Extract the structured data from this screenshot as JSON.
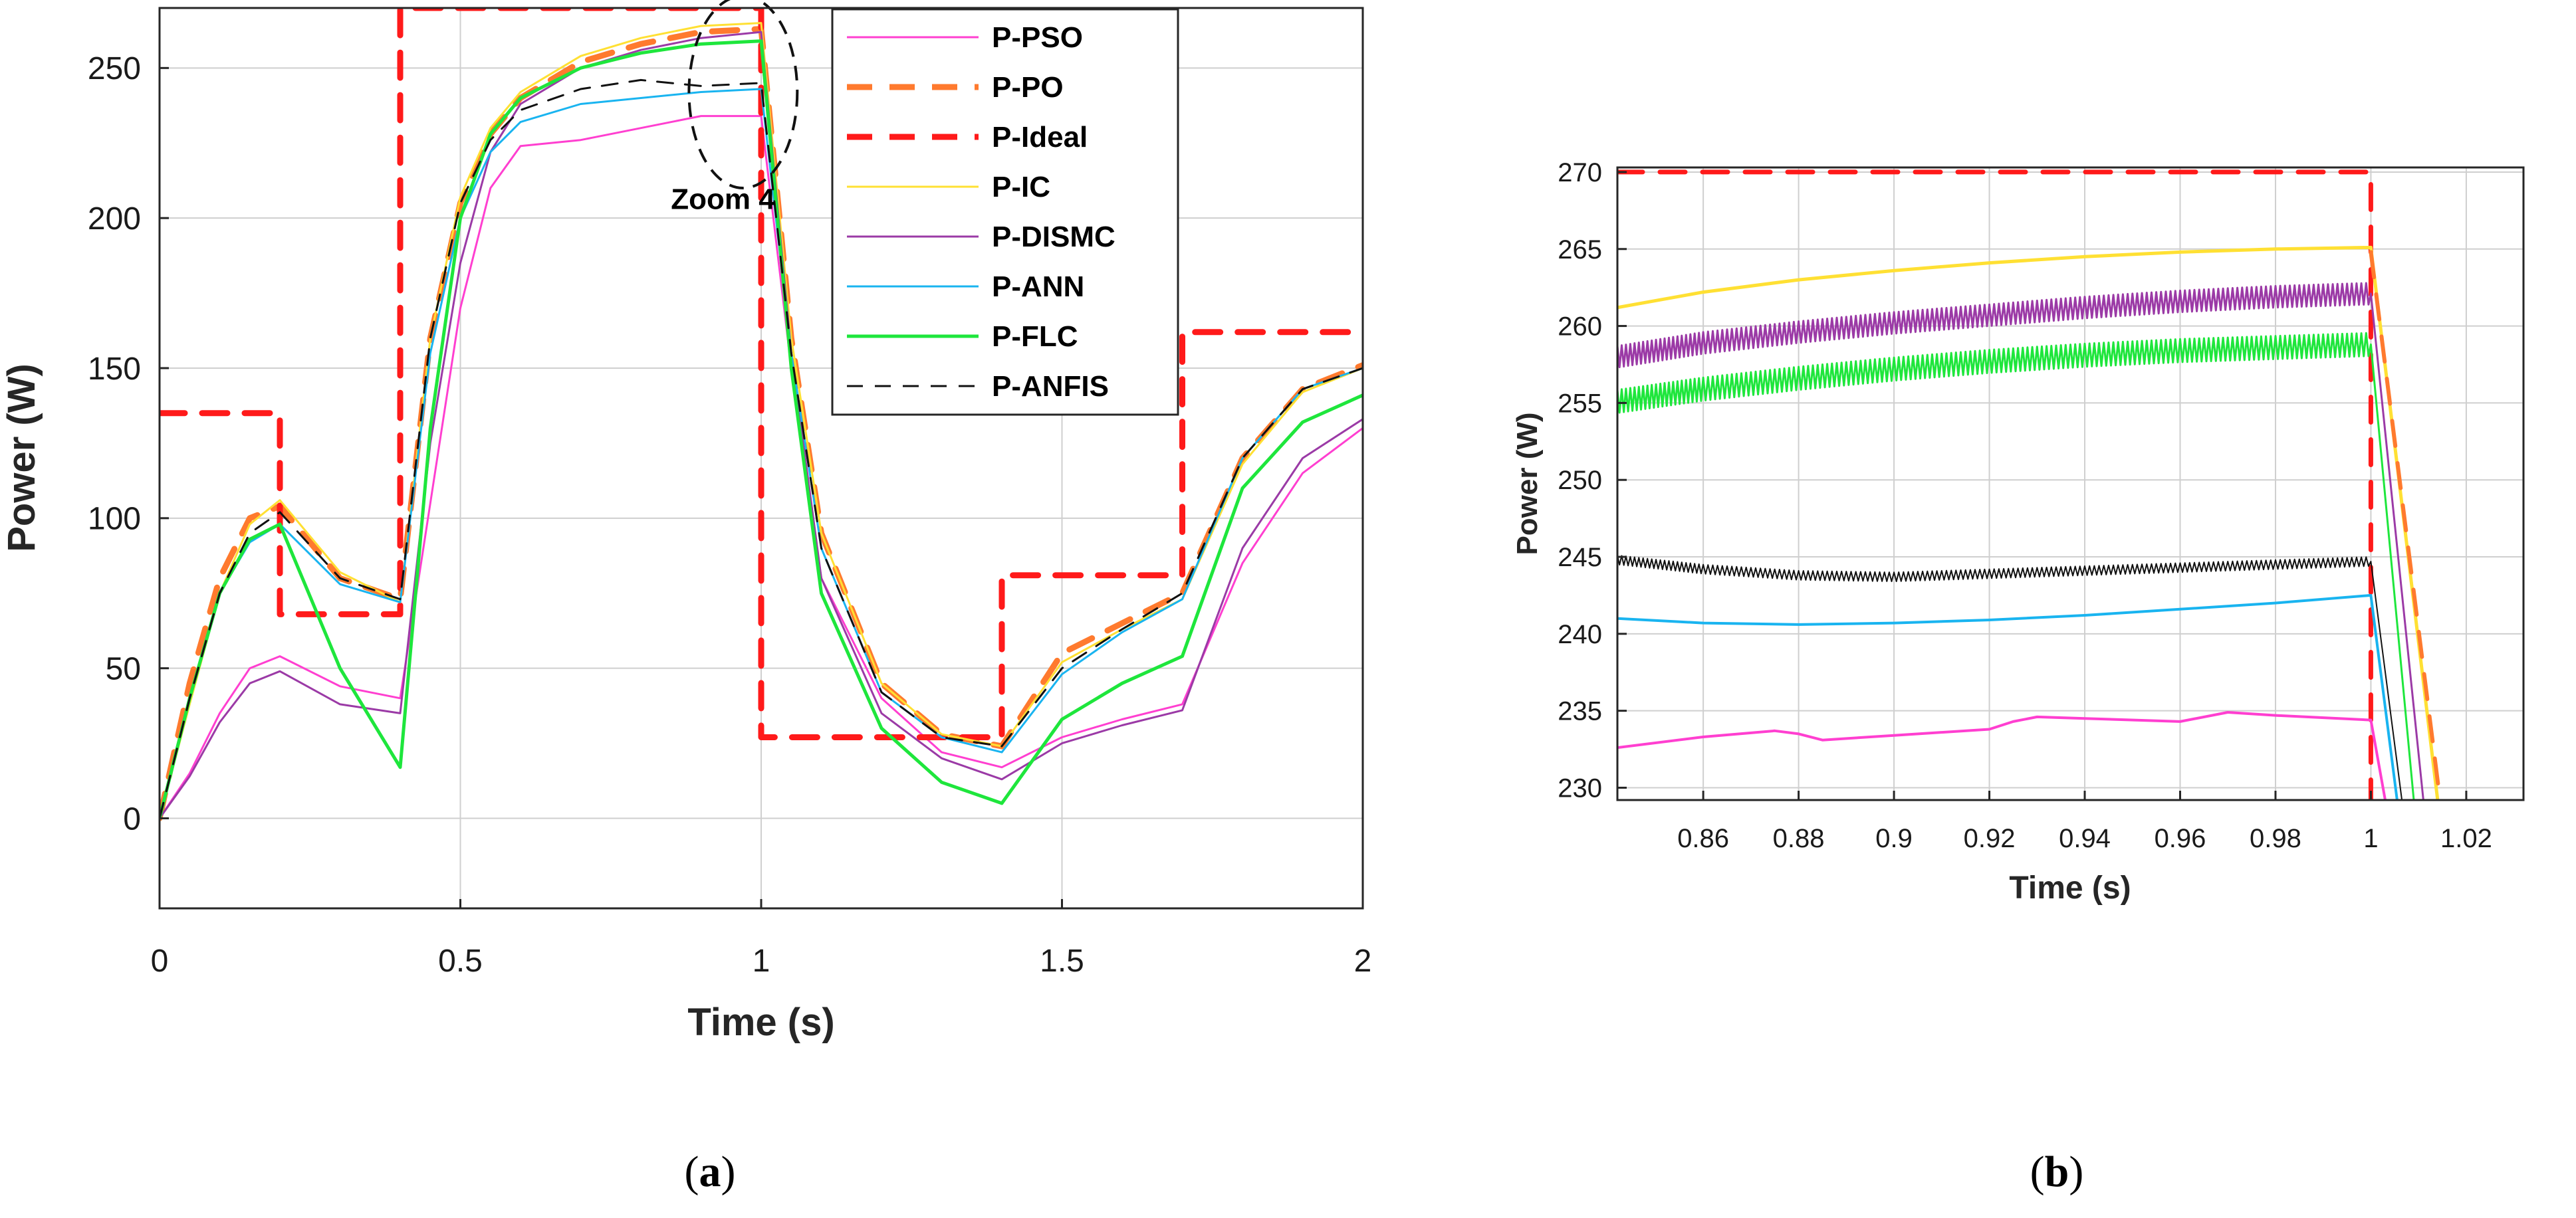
{
  "charts": [
    {
      "id": "a",
      "type": "line",
      "caption_letter": "a",
      "xlabel": "Time (s)",
      "ylabel": "Power (W)",
      "xlim": [
        0,
        2
      ],
      "ylim": [
        -30,
        270
      ],
      "xticks": [
        0,
        0.5,
        1,
        1.5,
        2
      ],
      "xtick_labels": [
        "0",
        "0.5",
        "1",
        "1.5",
        "2"
      ],
      "yticks": [
        0,
        50,
        100,
        150,
        200,
        250
      ],
      "ytick_labels": [
        "0",
        "50",
        "100",
        "150",
        "200",
        "250"
      ],
      "grid": true,
      "legend_position": "top-right",
      "annotation": {
        "text": "Zoom 4",
        "circle_center": [
          0.97,
          242
        ],
        "circle_radius_x": 0.09,
        "circle_radius_y": 32,
        "label_at": [
          0.85,
          203
        ]
      },
      "series": [
        {
          "name": "P-PSO",
          "color": "#ff3fd0",
          "style": "solid",
          "width": 3,
          "x": [
            0,
            0.05,
            0.1,
            0.15,
            0.2,
            0.3,
            0.4,
            0.45,
            0.5,
            0.55,
            0.6,
            0.7,
            0.8,
            0.9,
            1.0,
            1.05,
            1.1,
            1.2,
            1.3,
            1.4,
            1.5,
            1.6,
            1.7,
            1.8,
            1.9,
            2.0
          ],
          "y": [
            0,
            15,
            35,
            50,
            54,
            44,
            40,
            105,
            170,
            210,
            224,
            226,
            230,
            234,
            234,
            150,
            80,
            40,
            22,
            17,
            27,
            33,
            38,
            85,
            115,
            130
          ]
        },
        {
          "name": "P-PO",
          "color": "#ff7a2e",
          "style": "dash",
          "width": 9,
          "x": [
            0,
            0.05,
            0.1,
            0.15,
            0.2,
            0.3,
            0.4,
            0.45,
            0.5,
            0.55,
            0.6,
            0.7,
            0.8,
            0.9,
            1.0,
            1.05,
            1.1,
            1.2,
            1.3,
            1.4,
            1.5,
            1.6,
            1.7,
            1.8,
            1.9,
            2.0
          ],
          "y": [
            0,
            45,
            80,
            100,
            104,
            80,
            73,
            160,
            205,
            228,
            240,
            252,
            258,
            262,
            263,
            160,
            95,
            45,
            28,
            24,
            55,
            65,
            75,
            120,
            143,
            151
          ]
        },
        {
          "name": "P-Ideal",
          "color": "#ff1a1a",
          "style": "dash",
          "width": 9,
          "x": [
            0,
            0.2,
            0.2,
            0.4,
            0.4,
            1.0,
            1.0,
            1.4,
            1.4,
            1.7,
            1.7,
            2.0
          ],
          "y": [
            135,
            135,
            68,
            68,
            270,
            270,
            27,
            27,
            81,
            81,
            162,
            162
          ]
        },
        {
          "name": "P-IC",
          "color": "#ffe033",
          "style": "solid",
          "width": 3,
          "x": [
            0,
            0.05,
            0.1,
            0.15,
            0.2,
            0.3,
            0.4,
            0.45,
            0.5,
            0.55,
            0.6,
            0.7,
            0.8,
            0.9,
            1.0,
            1.05,
            1.1,
            1.2,
            1.3,
            1.4,
            1.5,
            1.6,
            1.7,
            1.8,
            1.9,
            2.0
          ],
          "y": [
            0,
            38,
            75,
            98,
            106,
            82,
            72,
            160,
            207,
            230,
            242,
            254,
            260,
            264,
            265,
            160,
            95,
            45,
            28,
            24,
            52,
            63,
            73,
            118,
            142,
            150
          ]
        },
        {
          "name": "P-DISMC",
          "color": "#9b3aa6",
          "style": "solid",
          "width": 3,
          "x": [
            0,
            0.05,
            0.1,
            0.15,
            0.2,
            0.3,
            0.4,
            0.45,
            0.5,
            0.55,
            0.6,
            0.7,
            0.8,
            0.9,
            1.0,
            1.05,
            1.1,
            1.2,
            1.3,
            1.4,
            1.5,
            1.6,
            1.7,
            1.8,
            1.9,
            2.0
          ],
          "y": [
            0,
            14,
            32,
            45,
            49,
            38,
            35,
            125,
            185,
            222,
            238,
            250,
            256,
            260,
            262,
            155,
            80,
            35,
            20,
            13,
            25,
            31,
            36,
            90,
            120,
            133
          ]
        },
        {
          "name": "P-ANN",
          "color": "#19b4f0",
          "style": "solid",
          "width": 3,
          "x": [
            0,
            0.05,
            0.1,
            0.15,
            0.2,
            0.3,
            0.4,
            0.45,
            0.5,
            0.55,
            0.6,
            0.7,
            0.8,
            0.9,
            1.0,
            1.05,
            1.1,
            1.2,
            1.3,
            1.4,
            1.5,
            1.6,
            1.7,
            1.8,
            1.9,
            2.0
          ],
          "y": [
            0,
            40,
            75,
            92,
            98,
            78,
            72,
            155,
            200,
            222,
            232,
            238,
            240,
            242,
            243,
            155,
            90,
            42,
            27,
            22,
            48,
            62,
            73,
            120,
            143,
            150
          ]
        },
        {
          "name": "P-FLC",
          "color": "#1ee63c",
          "style": "solid",
          "width": 5,
          "x": [
            0,
            0.05,
            0.1,
            0.15,
            0.2,
            0.3,
            0.4,
            0.45,
            0.5,
            0.55,
            0.6,
            0.7,
            0.8,
            0.9,
            1.0,
            1.05,
            1.1,
            1.2,
            1.3,
            1.4,
            1.5,
            1.6,
            1.7,
            1.8,
            1.9,
            2.0
          ],
          "y": [
            0,
            40,
            75,
            93,
            98,
            50,
            17,
            130,
            200,
            228,
            240,
            250,
            255,
            258,
            259,
            150,
            75,
            30,
            12,
            5,
            33,
            45,
            54,
            110,
            132,
            141
          ]
        },
        {
          "name": "P-ANFIS",
          "color": "#111111",
          "style": "dash2",
          "width": 3,
          "x": [
            0,
            0.05,
            0.1,
            0.15,
            0.2,
            0.3,
            0.4,
            0.45,
            0.5,
            0.55,
            0.6,
            0.7,
            0.8,
            0.9,
            1.0,
            1.05,
            1.1,
            1.2,
            1.3,
            1.4,
            1.5,
            1.6,
            1.7,
            1.8,
            1.9,
            2.0
          ],
          "y": [
            0,
            40,
            75,
            95,
            102,
            80,
            73,
            160,
            205,
            226,
            236,
            243,
            246,
            244,
            245,
            155,
            90,
            42,
            27,
            24,
            50,
            63,
            75,
            120,
            143,
            150
          ]
        }
      ]
    },
    {
      "id": "b",
      "type": "line",
      "caption_letter": "b",
      "xlabel": "Time (s)",
      "ylabel": "Power (W)",
      "xlim": [
        0.842,
        1.032
      ],
      "ylim": [
        229.2,
        270.3
      ],
      "xticks": [
        0.86,
        0.88,
        0.9,
        0.92,
        0.94,
        0.96,
        0.98,
        1,
        1.02
      ],
      "xtick_labels": [
        "0.86",
        "0.88",
        "0.9",
        "0.92",
        "0.94",
        "0.96",
        "0.98",
        "1",
        "1.02"
      ],
      "yticks": [
        230,
        235,
        240,
        245,
        250,
        255,
        260,
        265,
        270
      ],
      "ytick_labels": [
        "230",
        "235",
        "240",
        "245",
        "250",
        "255",
        "260",
        "265",
        "270"
      ],
      "grid": true,
      "legend_position": "none",
      "series": [
        {
          "name": "P-Ideal",
          "color": "#ff1a1a",
          "style": "dash",
          "width": 7,
          "x": [
            0.842,
            1.0,
            1.0
          ],
          "y": [
            270,
            270,
            229.2
          ]
        },
        {
          "name": "P-IC",
          "color": "#ffe033",
          "style": "solid",
          "width": 5,
          "x": [
            0.842,
            0.86,
            0.88,
            0.9,
            0.92,
            0.94,
            0.96,
            0.98,
            1.0,
            1.014
          ],
          "y": [
            261.2,
            262.2,
            263.0,
            263.6,
            264.1,
            264.5,
            264.8,
            265.0,
            265.1,
            229.2
          ]
        },
        {
          "name": "P-PO",
          "color": "#ff7a2e",
          "style": "dash",
          "width": 6,
          "x": [
            1.0,
            1.0145
          ],
          "y": [
            264.8,
            229.2
          ]
        },
        {
          "name": "P-DISMC",
          "color": "#9b3aa6",
          "style": "solid",
          "width": 3,
          "ripple": 1.4,
          "x": [
            0.842,
            0.86,
            0.88,
            0.9,
            0.92,
            0.94,
            0.96,
            0.98,
            1.0,
            1.011
          ],
          "y": [
            258.0,
            258.9,
            259.6,
            260.2,
            260.7,
            261.2,
            261.6,
            261.9,
            262.1,
            229.2
          ]
        },
        {
          "name": "P-FLC",
          "color": "#1ee63c",
          "style": "solid",
          "width": 3,
          "ripple": 1.5,
          "x": [
            0.842,
            0.86,
            0.88,
            0.9,
            0.92,
            0.94,
            0.96,
            0.98,
            1.0,
            1.009
          ],
          "y": [
            255.1,
            255.9,
            256.6,
            257.2,
            257.7,
            258.1,
            258.4,
            258.6,
            258.8,
            229.2
          ]
        },
        {
          "name": "P-ANFIS",
          "color": "#111111",
          "style": "solid",
          "width": 2,
          "ripple": 0.6,
          "x": [
            0.842,
            0.86,
            0.88,
            0.9,
            0.92,
            0.94,
            0.96,
            0.98,
            1.0,
            1.0065
          ],
          "y": [
            244.8,
            244.2,
            243.8,
            243.7,
            243.9,
            244.1,
            244.3,
            244.5,
            244.7,
            229.2
          ]
        },
        {
          "name": "P-ANN",
          "color": "#19b4f0",
          "style": "solid",
          "width": 4,
          "x": [
            0.842,
            0.86,
            0.88,
            0.9,
            0.92,
            0.94,
            0.96,
            0.98,
            1.0,
            1.0055
          ],
          "y": [
            241.0,
            240.7,
            240.6,
            240.7,
            240.9,
            241.2,
            241.6,
            242.0,
            242.5,
            229.2
          ]
        },
        {
          "name": "P-PSO",
          "color": "#ff3fd0",
          "style": "solid",
          "width": 4,
          "x": [
            0.842,
            0.86,
            0.875,
            0.88,
            0.885,
            0.9,
            0.92,
            0.925,
            0.93,
            0.94,
            0.96,
            0.97,
            0.98,
            1.0,
            1.003
          ],
          "y": [
            232.6,
            233.3,
            233.7,
            233.5,
            233.1,
            233.4,
            233.8,
            234.3,
            234.6,
            234.5,
            234.3,
            234.9,
            234.7,
            234.4,
            229.2
          ]
        }
      ]
    }
  ]
}
